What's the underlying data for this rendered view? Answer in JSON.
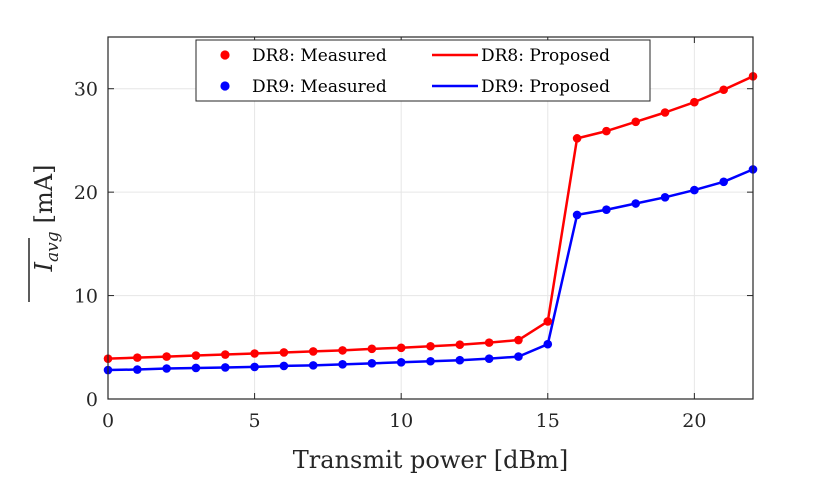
{
  "chart_data": {
    "type": "line",
    "title": "",
    "xlabel": "Transmit power [dBm]",
    "ylabel": "I_avg [mA]",
    "ylabel_main": "I",
    "ylabel_sub": "avg",
    "ylabel_unit": "[mA]",
    "xlim": [
      0,
      22
    ],
    "ylim": [
      0,
      35
    ],
    "xticks": [
      0,
      5,
      10,
      15,
      20
    ],
    "yticks": [
      0,
      10,
      20,
      30
    ],
    "grid": true,
    "legend_position": "top-center",
    "x": [
      0,
      1,
      2,
      3,
      4,
      5,
      6,
      7,
      8,
      9,
      10,
      11,
      12,
      13,
      14,
      15,
      16,
      17,
      18,
      19,
      20,
      21,
      22
    ],
    "series": [
      {
        "name": "DR8: Measured",
        "kind": "markers",
        "color": "#ff0000",
        "values": [
          3.9,
          4.0,
          4.1,
          4.2,
          4.3,
          4.4,
          4.5,
          4.6,
          4.7,
          4.85,
          4.95,
          5.1,
          5.25,
          5.45,
          5.7,
          7.5,
          25.2,
          25.9,
          26.8,
          27.7,
          28.7,
          29.9,
          31.2
        ]
      },
      {
        "name": "DR8: Proposed",
        "kind": "line",
        "color": "#ff0000",
        "values": [
          3.9,
          4.0,
          4.1,
          4.2,
          4.3,
          4.4,
          4.5,
          4.6,
          4.7,
          4.85,
          4.95,
          5.1,
          5.25,
          5.45,
          5.7,
          7.5,
          25.2,
          25.9,
          26.8,
          27.7,
          28.7,
          29.9,
          31.2
        ]
      },
      {
        "name": "DR9: Measured",
        "kind": "markers",
        "color": "#0000ff",
        "values": [
          2.8,
          2.85,
          2.95,
          3.0,
          3.05,
          3.1,
          3.2,
          3.25,
          3.35,
          3.45,
          3.55,
          3.65,
          3.75,
          3.9,
          4.1,
          5.3,
          17.8,
          18.3,
          18.9,
          19.5,
          20.2,
          21.0,
          22.2
        ]
      },
      {
        "name": "DR9: Proposed",
        "kind": "line",
        "color": "#0000ff",
        "values": [
          2.8,
          2.85,
          2.95,
          3.0,
          3.05,
          3.1,
          3.2,
          3.25,
          3.35,
          3.45,
          3.55,
          3.65,
          3.75,
          3.9,
          4.1,
          5.3,
          17.8,
          18.3,
          18.9,
          19.5,
          20.2,
          21.0,
          22.2
        ]
      }
    ]
  }
}
